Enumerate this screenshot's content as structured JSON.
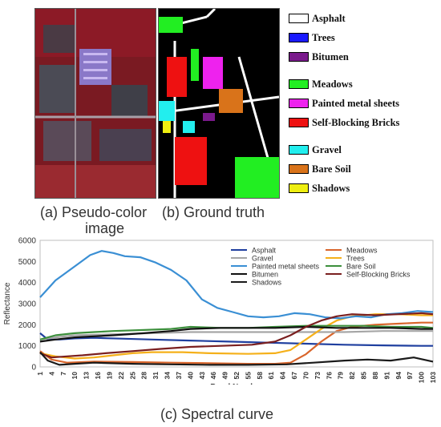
{
  "figure": {
    "caption_a": "(a) Pseudo-color",
    "caption_a2": "image",
    "caption_b": "(b) Ground truth",
    "caption_c": "(c) Spectral curve"
  },
  "legend_classes": [
    {
      "label": "Asphalt",
      "color": "#ffffff"
    },
    {
      "label": "Trees",
      "color": "#1a1aff"
    },
    {
      "label": "Bitumen",
      "color": "#7a1a8c"
    },
    {
      "label": "Meadows",
      "color": "#22ee22"
    },
    {
      "label": "Painted metal sheets",
      "color": "#ee22ee"
    },
    {
      "label": "Self-Blocking Bricks",
      "color": "#ee1111"
    },
    {
      "label": "Gravel",
      "color": "#22eeee"
    },
    {
      "label": "Bare Soil",
      "color": "#d9731a"
    },
    {
      "label": "Shadows",
      "color": "#eeee11"
    }
  ],
  "chart_data": {
    "type": "line",
    "xlabel": "Band Number",
    "ylabel": "Reflectance",
    "ylim": [
      0,
      6000
    ],
    "yticks": [
      0,
      1000,
      2000,
      3000,
      4000,
      5000,
      6000
    ],
    "xticks": [
      1,
      4,
      7,
      10,
      13,
      16,
      19,
      22,
      25,
      28,
      31,
      34,
      37,
      40,
      43,
      46,
      49,
      52,
      55,
      58,
      61,
      64,
      67,
      70,
      73,
      76,
      79,
      82,
      85,
      88,
      91,
      94,
      97,
      100,
      103
    ],
    "xlim": [
      1,
      103
    ],
    "series": [
      {
        "name": "Asphalt",
        "color": "#1f3f9f",
        "points": [
          [
            1,
            1600
          ],
          [
            3,
            1300
          ],
          [
            6,
            1300
          ],
          [
            10,
            1350
          ],
          [
            15,
            1380
          ],
          [
            22,
            1340
          ],
          [
            30,
            1300
          ],
          [
            40,
            1250
          ],
          [
            50,
            1200
          ],
          [
            60,
            1150
          ],
          [
            70,
            1100
          ],
          [
            80,
            1050
          ],
          [
            90,
            1020
          ],
          [
            100,
            1000
          ],
          [
            103,
            1000
          ]
        ]
      },
      {
        "name": "Meadows",
        "color": "#d9652b",
        "points": [
          [
            1,
            750
          ],
          [
            4,
            350
          ],
          [
            8,
            200
          ],
          [
            15,
            250
          ],
          [
            25,
            230
          ],
          [
            35,
            200
          ],
          [
            45,
            180
          ],
          [
            55,
            150
          ],
          [
            62,
            150
          ],
          [
            66,
            200
          ],
          [
            70,
            600
          ],
          [
            74,
            1200
          ],
          [
            78,
            1700
          ],
          [
            82,
            1900
          ],
          [
            88,
            2000
          ],
          [
            94,
            2050
          ],
          [
            100,
            2100
          ],
          [
            103,
            2100
          ]
        ]
      },
      {
        "name": "Gravel",
        "color": "#a6a6a6",
        "points": [
          [
            1,
            1300
          ],
          [
            5,
            1400
          ],
          [
            10,
            1500
          ],
          [
            20,
            1550
          ],
          [
            30,
            1600
          ],
          [
            40,
            1650
          ],
          [
            50,
            1650
          ],
          [
            60,
            1650
          ],
          [
            70,
            1650
          ],
          [
            80,
            1650
          ],
          [
            90,
            1700
          ],
          [
            100,
            1700
          ],
          [
            103,
            1700
          ]
        ]
      },
      {
        "name": "Trees",
        "color": "#f5b01a",
        "points": [
          [
            1,
            650
          ],
          [
            5,
            500
          ],
          [
            10,
            400
          ],
          [
            15,
            450
          ],
          [
            20,
            550
          ],
          [
            25,
            650
          ],
          [
            30,
            700
          ],
          [
            38,
            700
          ],
          [
            45,
            650
          ],
          [
            55,
            620
          ],
          [
            62,
            650
          ],
          [
            66,
            800
          ],
          [
            70,
            1300
          ],
          [
            74,
            1800
          ],
          [
            78,
            2200
          ],
          [
            82,
            2400
          ],
          [
            88,
            2500
          ],
          [
            94,
            2500
          ],
          [
            100,
            2450
          ],
          [
            103,
            2450
          ]
        ]
      },
      {
        "name": "Painted metal sheets",
        "color": "#3a8fd4",
        "points": [
          [
            1,
            3300
          ],
          [
            3,
            3700
          ],
          [
            5,
            4100
          ],
          [
            8,
            4500
          ],
          [
            11,
            4900
          ],
          [
            14,
            5300
          ],
          [
            17,
            5500
          ],
          [
            20,
            5400
          ],
          [
            23,
            5250
          ],
          [
            27,
            5200
          ],
          [
            31,
            4950
          ],
          [
            35,
            4600
          ],
          [
            39,
            4100
          ],
          [
            43,
            3200
          ],
          [
            47,
            2800
          ],
          [
            51,
            2600
          ],
          [
            55,
            2400
          ],
          [
            59,
            2350
          ],
          [
            63,
            2400
          ],
          [
            67,
            2550
          ],
          [
            71,
            2500
          ],
          [
            75,
            2350
          ],
          [
            79,
            2300
          ],
          [
            83,
            2400
          ],
          [
            87,
            2350
          ],
          [
            91,
            2500
          ],
          [
            95,
            2550
          ],
          [
            99,
            2650
          ],
          [
            103,
            2600
          ]
        ]
      },
      {
        "name": "Bare Soil",
        "color": "#3c8f3c",
        "points": [
          [
            1,
            1300
          ],
          [
            5,
            1500
          ],
          [
            10,
            1600
          ],
          [
            15,
            1650
          ],
          [
            20,
            1700
          ],
          [
            28,
            1750
          ],
          [
            35,
            1800
          ],
          [
            40,
            1900
          ],
          [
            48,
            1850
          ],
          [
            55,
            1850
          ],
          [
            62,
            1900
          ],
          [
            70,
            1950
          ],
          [
            78,
            1950
          ],
          [
            85,
            1950
          ],
          [
            92,
            1900
          ],
          [
            100,
            1900
          ],
          [
            103,
            1850
          ]
        ]
      },
      {
        "name": "Bitumen",
        "color": "#111111",
        "points": [
          [
            1,
            1200
          ],
          [
            5,
            1300
          ],
          [
            10,
            1400
          ],
          [
            15,
            1450
          ],
          [
            20,
            1500
          ],
          [
            28,
            1600
          ],
          [
            35,
            1700
          ],
          [
            40,
            1800
          ],
          [
            48,
            1850
          ],
          [
            55,
            1850
          ],
          [
            62,
            1850
          ],
          [
            70,
            1900
          ],
          [
            78,
            1850
          ],
          [
            85,
            1850
          ],
          [
            92,
            1850
          ],
          [
            100,
            1800
          ],
          [
            103,
            1800
          ]
        ]
      },
      {
        "name": "Self-Blocking Bricks",
        "color": "#7a1f1f",
        "points": [
          [
            1,
            650
          ],
          [
            4,
            450
          ],
          [
            8,
            500
          ],
          [
            12,
            550
          ],
          [
            18,
            650
          ],
          [
            25,
            750
          ],
          [
            32,
            850
          ],
          [
            40,
            950
          ],
          [
            48,
            1000
          ],
          [
            56,
            1050
          ],
          [
            62,
            1200
          ],
          [
            66,
            1500
          ],
          [
            70,
            1900
          ],
          [
            74,
            2200
          ],
          [
            78,
            2400
          ],
          [
            82,
            2500
          ],
          [
            88,
            2450
          ],
          [
            94,
            2500
          ],
          [
            100,
            2550
          ],
          [
            103,
            2500
          ]
        ]
      },
      {
        "name": "Shadows",
        "color": "#1a1a1a",
        "points": [
          [
            1,
            700
          ],
          [
            3,
            300
          ],
          [
            6,
            100
          ],
          [
            10,
            150
          ],
          [
            15,
            200
          ],
          [
            25,
            150
          ],
          [
            35,
            120
          ],
          [
            45,
            100
          ],
          [
            55,
            100
          ],
          [
            65,
            120
          ],
          [
            72,
            200
          ],
          [
            80,
            300
          ],
          [
            86,
            350
          ],
          [
            92,
            300
          ],
          [
            98,
            450
          ],
          [
            103,
            250
          ]
        ]
      }
    ]
  }
}
